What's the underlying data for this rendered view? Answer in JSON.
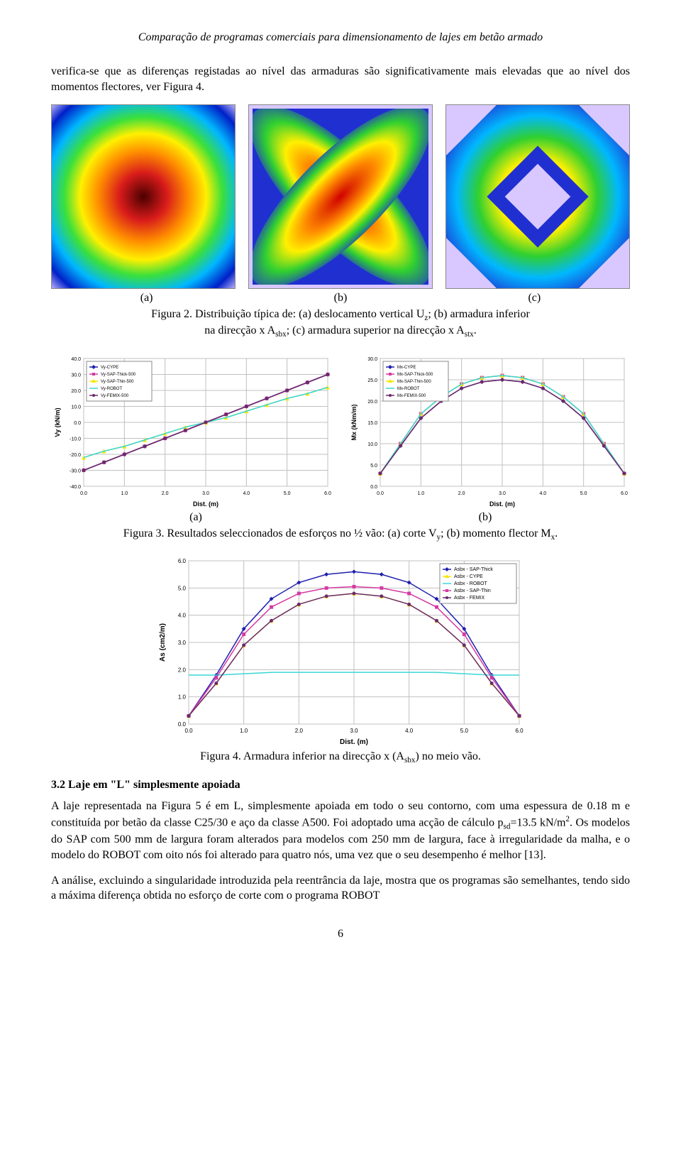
{
  "header": "Comparação de programas comerciais para dimensionamento de lajes em betão armado",
  "para1": "verifica-se que as diferenças registadas ao nível das armaduras são significativamente mais elevadas que ao nível dos momentos flectores, ver Figura 4.",
  "colormap_labels": {
    "a": "(a)",
    "b": "(b)",
    "c": "(c)"
  },
  "fig2_caption_l1": "Figura 2. Distribuição típica de: (a) deslocamento vertical U",
  "fig2_caption_sub1": "z",
  "fig2_caption_l2": "; (b) armadura inferior",
  "fig2_caption_l3": "na direcção x A",
  "fig2_caption_sub2": "sbx",
  "fig2_caption_l4": "; (c) armadura superior na direcção x A",
  "fig2_caption_sub3": "stx",
  "fig2_caption_l5": ".",
  "chart_vy": {
    "type": "line",
    "xlabel": "Dist. (m)",
    "ylabel": "Vy (kN/m)",
    "xlim": [
      0,
      6
    ],
    "ylim": [
      -40,
      40
    ],
    "xtick_step": 1.0,
    "ytick_step": 10.0,
    "background_color": "#ffffff",
    "grid_color": "#c0c0c0",
    "axis_fontsize": 7,
    "label_fontsize": 9,
    "legend_fontsize": 6,
    "series": [
      {
        "name": "Vy-CYPE",
        "color": "#1f1fb0",
        "marker": "diamond"
      },
      {
        "name": "Vy-SAP-Thick-500",
        "color": "#d63aa3",
        "marker": "square"
      },
      {
        "name": "Vy-SAP-Thin-500",
        "color": "#f7e600",
        "marker": "triangle"
      },
      {
        "name": "Vy-ROBOT",
        "color": "#3ad6d6",
        "marker": "none"
      },
      {
        "name": "Vy-FEMIX-500",
        "color": "#6b2a6b",
        "marker": "circle"
      }
    ],
    "x": [
      0.0,
      0.5,
      1.0,
      1.5,
      2.0,
      2.5,
      3.0,
      3.5,
      4.0,
      4.5,
      5.0,
      5.5,
      6.0
    ],
    "y_main": [
      -30,
      -25,
      -20,
      -15,
      -10,
      -5,
      0,
      5,
      10,
      15,
      20,
      25,
      30
    ],
    "y_alt": [
      -22,
      -18,
      -15,
      -11,
      -7,
      -3,
      0,
      3,
      7,
      11,
      15,
      18,
      22
    ]
  },
  "chart_mx": {
    "type": "line",
    "xlabel": "Dist. (m)",
    "ylabel": "Mx (kNm/m)",
    "xlim": [
      0,
      6
    ],
    "ylim": [
      0,
      30
    ],
    "xtick_step": 1.0,
    "ytick_step": 5.0,
    "background_color": "#ffffff",
    "grid_color": "#c0c0c0",
    "axis_fontsize": 7,
    "label_fontsize": 9,
    "legend_fontsize": 6,
    "series": [
      {
        "name": "Mx-CYPE",
        "color": "#1f1fb0",
        "marker": "diamond"
      },
      {
        "name": "Mx-SAP-Thick-500",
        "color": "#d63aa3",
        "marker": "square"
      },
      {
        "name": "Mx-SAP-Thin-500",
        "color": "#f7e600",
        "marker": "triangle"
      },
      {
        "name": "Mx-ROBOT",
        "color": "#3ad6d6",
        "marker": "none"
      },
      {
        "name": "Mx-FEMIX-500",
        "color": "#6b2a6b",
        "marker": "circle"
      }
    ],
    "x": [
      0.0,
      0.5,
      1.0,
      1.5,
      2.0,
      2.5,
      3.0,
      3.5,
      4.0,
      4.5,
      5.0,
      5.5,
      6.0
    ],
    "y_main": [
      3,
      10,
      17,
      21,
      24,
      25.5,
      26,
      25.5,
      24,
      21,
      17,
      10,
      3
    ],
    "y_alt": [
      3,
      9.5,
      16,
      20,
      23,
      24.5,
      25,
      24.5,
      23,
      20,
      16,
      9.5,
      3
    ]
  },
  "fig3_sub": {
    "a": "(a)",
    "b": "(b)"
  },
  "fig3_caption_l1": "Figura 3. Resultados seleccionados de esforços no ½ vão: (a) corte V",
  "fig3_caption_sub1": "y",
  "fig3_caption_l2": "; (b) momento flector M",
  "fig3_caption_sub2": "x",
  "fig3_caption_l3": ".",
  "chart_as": {
    "type": "line",
    "xlabel": "Dist. (m)",
    "ylabel": "As (cm2/m)",
    "xlim": [
      0,
      6
    ],
    "ylim": [
      0,
      6
    ],
    "xtick_step": 1.0,
    "ytick_step": 1.0,
    "background_color": "#ffffff",
    "grid_color": "#c0c0c0",
    "axis_fontsize": 8,
    "label_fontsize": 10,
    "legend_fontsize": 7,
    "series": [
      {
        "name": "Asbx - SAP-Thick",
        "color": "#1f1fb0",
        "marker": "diamond"
      },
      {
        "name": "Asbx - CYPE",
        "color": "#f7e600",
        "marker": "triangle"
      },
      {
        "name": "Asbx - ROBOT",
        "color": "#3ad6d6",
        "marker": "none"
      },
      {
        "name": "Asbx - SAP-Thin",
        "color": "#d63aa3",
        "marker": "square"
      },
      {
        "name": "Asbx - FEMIX",
        "color": "#6b2a6b",
        "marker": "circle"
      }
    ],
    "x": [
      0.0,
      0.5,
      1.0,
      1.5,
      2.0,
      2.5,
      3.0,
      3.5,
      4.0,
      4.5,
      5.0,
      5.5,
      6.0
    ],
    "y_upper": [
      0.3,
      1.8,
      3.5,
      4.6,
      5.2,
      5.5,
      5.6,
      5.5,
      5.2,
      4.6,
      3.5,
      1.8,
      0.3
    ],
    "y_mid": [
      0.3,
      1.7,
      3.3,
      4.3,
      4.8,
      5.0,
      5.05,
      5.0,
      4.8,
      4.3,
      3.3,
      1.7,
      0.3
    ],
    "y_lower": [
      0.3,
      1.5,
      2.9,
      3.8,
      4.4,
      4.7,
      4.8,
      4.7,
      4.4,
      3.8,
      2.9,
      1.5,
      0.3
    ],
    "y_flat": [
      1.8,
      1.8,
      1.85,
      1.9,
      1.9,
      1.9,
      1.9,
      1.9,
      1.9,
      1.9,
      1.85,
      1.8,
      1.8
    ]
  },
  "fig4_caption_l1": "Figura 4. Armadura inferior na direcção x (A",
  "fig4_caption_sub": "sbx",
  "fig4_caption_l2": ") no meio vão.",
  "section32": "3.2 Laje em \"L\" simplesmente apoiada",
  "para2_a": "A laje representada na Figura 5 é em L, simplesmente apoiada em todo o seu contorno, com uma espessura de 0.18 m e constituída por betão da classe C25/30 e aço da classe A500. Foi adoptado uma acção de cálculo p",
  "para2_sub": "sd",
  "para2_b": "=13.5 kN/m",
  "para2_sup": "2",
  "para2_c": ". Os modelos do SAP com 500 mm de largura foram alterados para modelos com 250 mm de largura, face à irregularidade da malha, e o modelo do ROBOT com oito nós foi alterado para quatro nós, uma vez que o seu desempenho é melhor [13].",
  "para3": "A análise, excluindo a singularidade introduzida pela reentrância da laje, mostra que os programas são semelhantes, tendo sido a máxima diferença obtida no esforço de corte com o programa ROBOT",
  "pagenum": "6",
  "svg_colormap": {
    "stops_radial": [
      {
        "o": "0%",
        "c": "#4b0000"
      },
      {
        "o": "18%",
        "c": "#d81b1b"
      },
      {
        "o": "34%",
        "c": "#ff8c00"
      },
      {
        "o": "48%",
        "c": "#fff000"
      },
      {
        "o": "60%",
        "c": "#3be03b"
      },
      {
        "o": "74%",
        "c": "#00b7ff"
      },
      {
        "o": "88%",
        "c": "#0020c8"
      },
      {
        "o": "100%",
        "c": "#d8c8ff"
      }
    ]
  }
}
